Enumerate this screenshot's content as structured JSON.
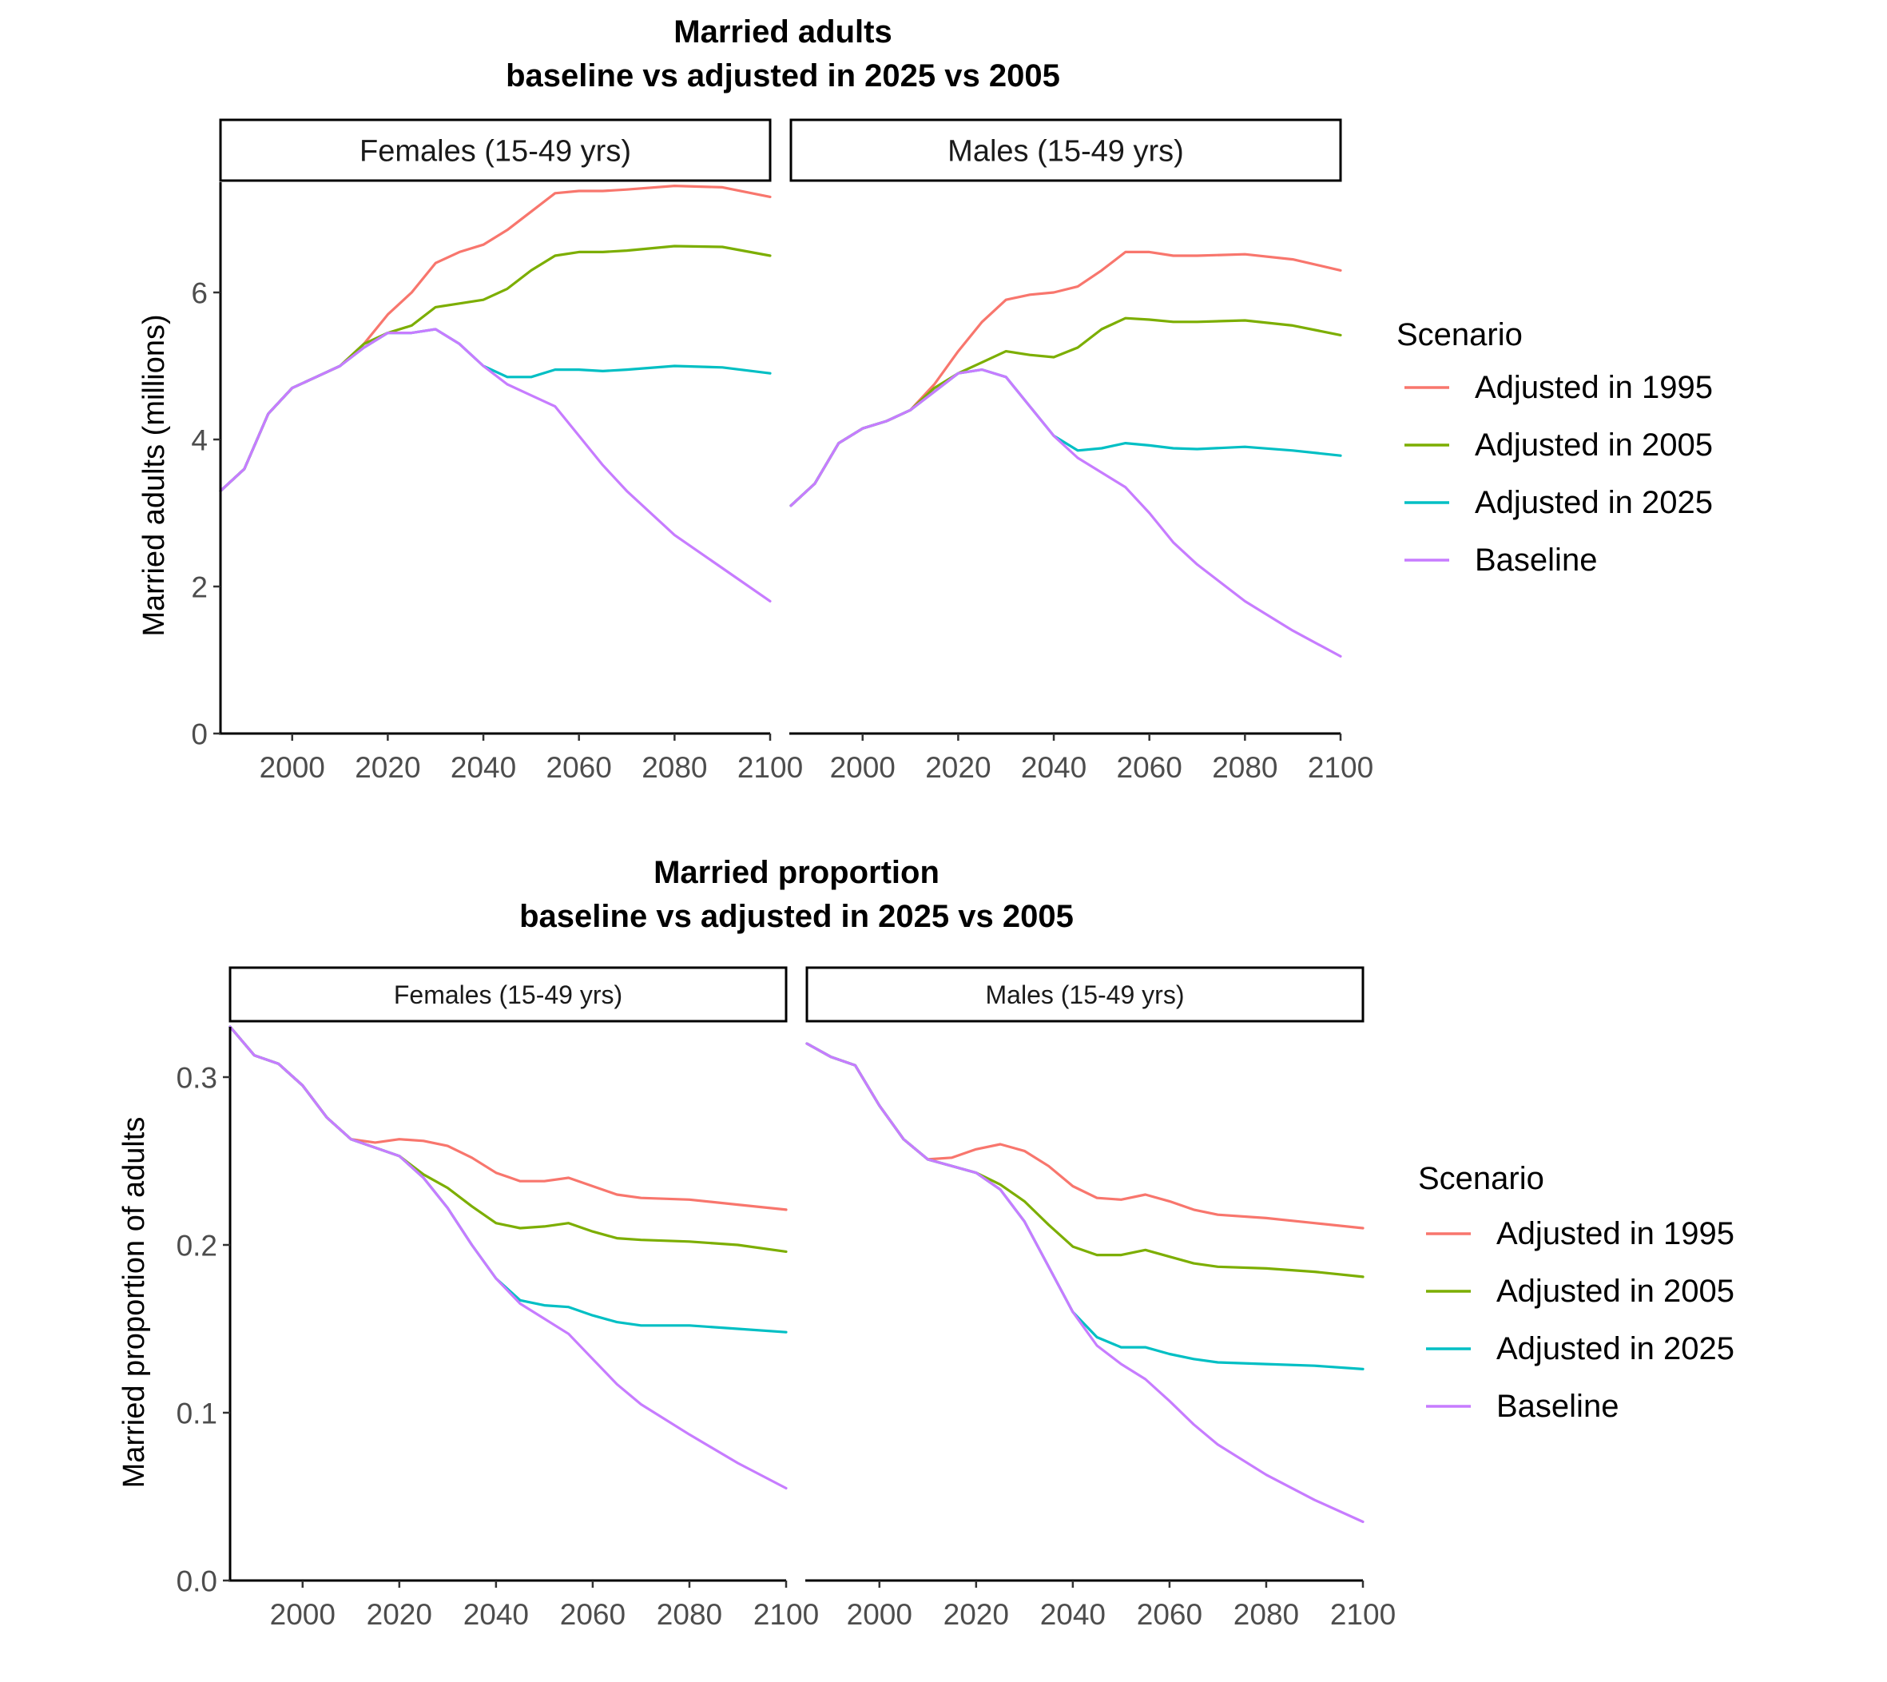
{
  "colors": {
    "Adjusted in 1995": "#F8766D",
    "Adjusted in 2005": "#7CAE00",
    "Adjusted in 2025": "#00BFC4",
    "Baseline": "#C77CFF"
  },
  "chart_data": [
    {
      "type": "line",
      "title": "Married adults",
      "subtitle": "baseline vs adjusted in 2025 vs 2005",
      "xlabel": "",
      "ylabel": "Married adults (millions)",
      "xlim": [
        1985,
        2100
      ],
      "ylim": [
        0,
        7.5
      ],
      "x_ticks": [
        2000,
        2020,
        2040,
        2060,
        2080,
        2100
      ],
      "y_ticks": [
        0,
        2,
        4,
        6
      ],
      "y_tick_labels": [
        "0",
        "2",
        "4",
        "6"
      ],
      "grid": false,
      "legend_title": "Scenario",
      "legend_position": "right",
      "legend_entries": [
        "Adjusted in 1995",
        "Adjusted in 2005",
        "Adjusted in 2025",
        "Baseline"
      ],
      "panels": [
        {
          "label": "Females (15-49 yrs)",
          "series": [
            {
              "name": "Adjusted in 1995",
              "x": [
                1985,
                1990,
                1995,
                2000,
                2005,
                2010,
                2015,
                2020,
                2025,
                2030,
                2035,
                2040,
                2045,
                2050,
                2055,
                2060,
                2065,
                2070,
                2080,
                2090,
                2100
              ],
              "y": [
                3.3,
                3.6,
                4.35,
                4.7,
                4.85,
                5.0,
                5.3,
                5.7,
                6.0,
                6.4,
                6.55,
                6.65,
                6.85,
                7.1,
                7.35,
                7.38,
                7.38,
                7.4,
                7.45,
                7.43,
                7.3
              ]
            },
            {
              "name": "Adjusted in 2005",
              "x": [
                1985,
                1990,
                1995,
                2000,
                2005,
                2010,
                2015,
                2020,
                2025,
                2030,
                2035,
                2040,
                2045,
                2050,
                2055,
                2060,
                2065,
                2070,
                2080,
                2090,
                2100
              ],
              "y": [
                3.3,
                3.6,
                4.35,
                4.7,
                4.85,
                5.0,
                5.3,
                5.45,
                5.55,
                5.8,
                5.85,
                5.9,
                6.05,
                6.3,
                6.5,
                6.55,
                6.55,
                6.57,
                6.63,
                6.62,
                6.5
              ]
            },
            {
              "name": "Adjusted in 2025",
              "x": [
                1985,
                1990,
                1995,
                2000,
                2005,
                2010,
                2015,
                2020,
                2025,
                2030,
                2035,
                2040,
                2045,
                2050,
                2055,
                2060,
                2065,
                2070,
                2080,
                2090,
                2100
              ],
              "y": [
                3.3,
                3.6,
                4.35,
                4.7,
                4.85,
                5.0,
                5.25,
                5.45,
                5.45,
                5.5,
                5.3,
                5.0,
                4.85,
                4.85,
                4.95,
                4.95,
                4.93,
                4.95,
                5.0,
                4.98,
                4.9
              ]
            },
            {
              "name": "Baseline",
              "x": [
                1985,
                1990,
                1995,
                2000,
                2005,
                2010,
                2015,
                2020,
                2025,
                2030,
                2035,
                2040,
                2045,
                2050,
                2055,
                2060,
                2065,
                2070,
                2080,
                2090,
                2100
              ],
              "y": [
                3.3,
                3.6,
                4.35,
                4.7,
                4.85,
                5.0,
                5.25,
                5.45,
                5.45,
                5.5,
                5.3,
                5.0,
                4.75,
                4.6,
                4.45,
                4.05,
                3.65,
                3.3,
                2.7,
                2.25,
                1.8
              ]
            }
          ]
        },
        {
          "label": "Males (15-49 yrs)",
          "series": [
            {
              "name": "Adjusted in 1995",
              "x": [
                1985,
                1990,
                1995,
                2000,
                2005,
                2010,
                2015,
                2020,
                2025,
                2030,
                2035,
                2040,
                2045,
                2050,
                2055,
                2060,
                2065,
                2070,
                2080,
                2090,
                2100
              ],
              "y": [
                3.1,
                3.4,
                3.95,
                4.15,
                4.25,
                4.4,
                4.75,
                5.2,
                5.6,
                5.9,
                5.97,
                6.0,
                6.08,
                6.3,
                6.55,
                6.55,
                6.5,
                6.5,
                6.52,
                6.45,
                6.3
              ]
            },
            {
              "name": "Adjusted in 2005",
              "x": [
                1985,
                1990,
                1995,
                2000,
                2005,
                2010,
                2015,
                2020,
                2025,
                2030,
                2035,
                2040,
                2045,
                2050,
                2055,
                2060,
                2065,
                2070,
                2080,
                2090,
                2100
              ],
              "y": [
                3.1,
                3.4,
                3.95,
                4.15,
                4.25,
                4.4,
                4.7,
                4.9,
                5.05,
                5.2,
                5.15,
                5.12,
                5.25,
                5.5,
                5.65,
                5.63,
                5.6,
                5.6,
                5.62,
                5.55,
                5.42
              ]
            },
            {
              "name": "Adjusted in 2025",
              "x": [
                1985,
                1990,
                1995,
                2000,
                2005,
                2010,
                2015,
                2020,
                2025,
                2030,
                2035,
                2040,
                2045,
                2050,
                2055,
                2060,
                2065,
                2070,
                2080,
                2090,
                2100
              ],
              "y": [
                3.1,
                3.4,
                3.95,
                4.15,
                4.25,
                4.4,
                4.65,
                4.9,
                4.95,
                4.85,
                4.45,
                4.05,
                3.85,
                3.88,
                3.95,
                3.92,
                3.88,
                3.87,
                3.9,
                3.85,
                3.78
              ]
            },
            {
              "name": "Baseline",
              "x": [
                1985,
                1990,
                1995,
                2000,
                2005,
                2010,
                2015,
                2020,
                2025,
                2030,
                2035,
                2040,
                2045,
                2050,
                2055,
                2060,
                2065,
                2070,
                2080,
                2090,
                2100
              ],
              "y": [
                3.1,
                3.4,
                3.95,
                4.15,
                4.25,
                4.4,
                4.65,
                4.9,
                4.95,
                4.85,
                4.45,
                4.05,
                3.75,
                3.55,
                3.35,
                3.0,
                2.6,
                2.3,
                1.8,
                1.4,
                1.05
              ]
            }
          ]
        }
      ]
    },
    {
      "type": "line",
      "title": "Married proportion",
      "subtitle": "baseline vs adjusted in 2025 vs 2005",
      "xlabel": "",
      "ylabel": "Married proportion of adults",
      "xlim": [
        1985,
        2100
      ],
      "ylim": [
        0,
        0.33
      ],
      "x_ticks": [
        2000,
        2020,
        2040,
        2060,
        2080,
        2100
      ],
      "y_ticks": [
        0,
        0.1,
        0.2,
        0.3
      ],
      "y_tick_labels": [
        "0.0",
        "0.1",
        "0.2",
        "0.3"
      ],
      "grid": false,
      "legend_title": "Scenario",
      "legend_position": "right",
      "legend_entries": [
        "Adjusted in 1995",
        "Adjusted in 2005",
        "Adjusted in 2025",
        "Baseline"
      ],
      "panels": [
        {
          "label": "Females (15-49 yrs)",
          "series": [
            {
              "name": "Adjusted in 1995",
              "x": [
                1985,
                1990,
                1995,
                2000,
                2005,
                2010,
                2015,
                2020,
                2025,
                2030,
                2035,
                2040,
                2045,
                2050,
                2055,
                2060,
                2065,
                2070,
                2080,
                2090,
                2100
              ],
              "y": [
                0.33,
                0.313,
                0.308,
                0.295,
                0.276,
                0.263,
                0.261,
                0.263,
                0.262,
                0.259,
                0.252,
                0.243,
                0.238,
                0.238,
                0.24,
                0.235,
                0.23,
                0.228,
                0.227,
                0.224,
                0.221
              ]
            },
            {
              "name": "Adjusted in 2005",
              "x": [
                1985,
                1990,
                1995,
                2000,
                2005,
                2010,
                2015,
                2020,
                2025,
                2030,
                2035,
                2040,
                2045,
                2050,
                2055,
                2060,
                2065,
                2070,
                2080,
                2090,
                2100
              ],
              "y": [
                0.33,
                0.313,
                0.308,
                0.295,
                0.276,
                0.263,
                0.258,
                0.253,
                0.242,
                0.234,
                0.223,
                0.213,
                0.21,
                0.211,
                0.213,
                0.208,
                0.204,
                0.203,
                0.202,
                0.2,
                0.196
              ]
            },
            {
              "name": "Adjusted in 2025",
              "x": [
                1985,
                1990,
                1995,
                2000,
                2005,
                2010,
                2015,
                2020,
                2025,
                2030,
                2035,
                2040,
                2045,
                2050,
                2055,
                2060,
                2065,
                2070,
                2080,
                2090,
                2100
              ],
              "y": [
                0.33,
                0.313,
                0.308,
                0.295,
                0.276,
                0.263,
                0.258,
                0.253,
                0.24,
                0.222,
                0.2,
                0.18,
                0.167,
                0.164,
                0.163,
                0.158,
                0.154,
                0.152,
                0.152,
                0.15,
                0.148
              ]
            },
            {
              "name": "Baseline",
              "x": [
                1985,
                1990,
                1995,
                2000,
                2005,
                2010,
                2015,
                2020,
                2025,
                2030,
                2035,
                2040,
                2045,
                2050,
                2055,
                2060,
                2065,
                2070,
                2080,
                2090,
                2100
              ],
              "y": [
                0.33,
                0.313,
                0.308,
                0.295,
                0.276,
                0.263,
                0.258,
                0.253,
                0.24,
                0.222,
                0.2,
                0.18,
                0.165,
                0.156,
                0.147,
                0.132,
                0.117,
                0.105,
                0.087,
                0.07,
                0.055
              ]
            }
          ]
        },
        {
          "label": "Males (15-49 yrs)",
          "series": [
            {
              "name": "Adjusted in 1995",
              "x": [
                1985,
                1990,
                1995,
                2000,
                2005,
                2010,
                2015,
                2020,
                2025,
                2030,
                2035,
                2040,
                2045,
                2050,
                2055,
                2060,
                2065,
                2070,
                2080,
                2090,
                2100
              ],
              "y": [
                0.32,
                0.312,
                0.307,
                0.283,
                0.263,
                0.251,
                0.252,
                0.257,
                0.26,
                0.256,
                0.247,
                0.235,
                0.228,
                0.227,
                0.23,
                0.226,
                0.221,
                0.218,
                0.216,
                0.213,
                0.21
              ]
            },
            {
              "name": "Adjusted in 2005",
              "x": [
                1985,
                1990,
                1995,
                2000,
                2005,
                2010,
                2015,
                2020,
                2025,
                2030,
                2035,
                2040,
                2045,
                2050,
                2055,
                2060,
                2065,
                2070,
                2080,
                2090,
                2100
              ],
              "y": [
                0.32,
                0.312,
                0.307,
                0.283,
                0.263,
                0.251,
                0.247,
                0.243,
                0.236,
                0.226,
                0.212,
                0.199,
                0.194,
                0.194,
                0.197,
                0.193,
                0.189,
                0.187,
                0.186,
                0.184,
                0.181
              ]
            },
            {
              "name": "Adjusted in 2025",
              "x": [
                1985,
                1990,
                1995,
                2000,
                2005,
                2010,
                2015,
                2020,
                2025,
                2030,
                2035,
                2040,
                2045,
                2050,
                2055,
                2060,
                2065,
                2070,
                2080,
                2090,
                2100
              ],
              "y": [
                0.32,
                0.312,
                0.307,
                0.283,
                0.263,
                0.251,
                0.247,
                0.243,
                0.233,
                0.214,
                0.187,
                0.16,
                0.145,
                0.139,
                0.139,
                0.135,
                0.132,
                0.13,
                0.129,
                0.128,
                0.126
              ]
            },
            {
              "name": "Baseline",
              "x": [
                1985,
                1990,
                1995,
                2000,
                2005,
                2010,
                2015,
                2020,
                2025,
                2030,
                2035,
                2040,
                2045,
                2050,
                2055,
                2060,
                2065,
                2070,
                2080,
                2090,
                2100
              ],
              "y": [
                0.32,
                0.312,
                0.307,
                0.283,
                0.263,
                0.251,
                0.247,
                0.243,
                0.233,
                0.214,
                0.187,
                0.16,
                0.14,
                0.129,
                0.12,
                0.107,
                0.093,
                0.081,
                0.063,
                0.048,
                0.035
              ]
            }
          ]
        }
      ]
    }
  ]
}
